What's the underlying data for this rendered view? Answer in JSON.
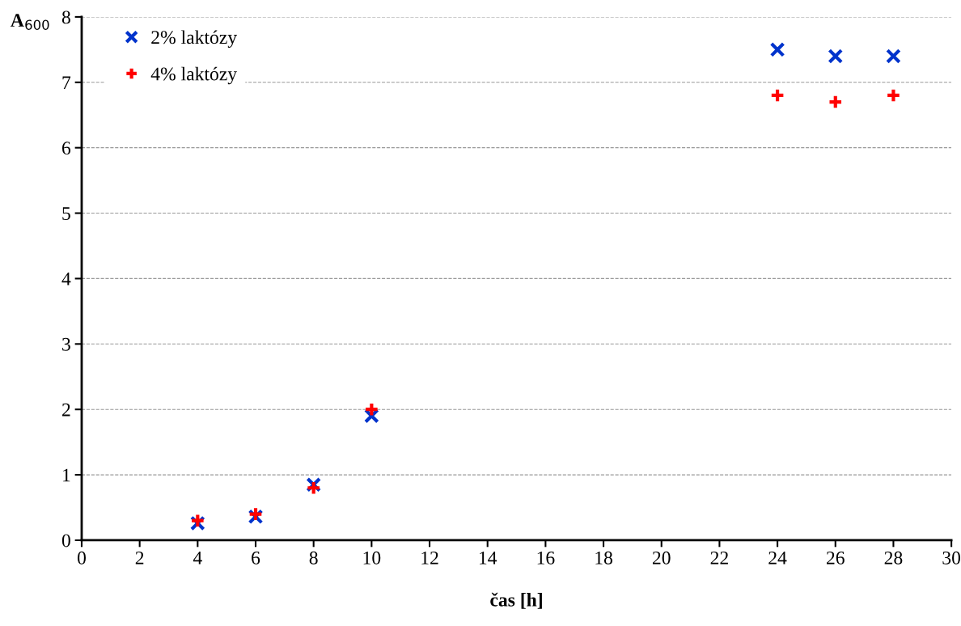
{
  "chart_data": {
    "type": "scatter",
    "xlabel": "čas [h]",
    "ylabel": "A$_{600}$",
    "x": [
      4,
      6,
      8,
      10,
      24,
      26,
      28
    ],
    "series": [
      {
        "name": "2% laktózy",
        "color": "#0033cc",
        "marker": "cross",
        "values": [
          0.26,
          0.36,
          0.85,
          1.9,
          7.5,
          7.4,
          7.4
        ]
      },
      {
        "name": "4% laktózy",
        "color": "#ff0000",
        "marker": "plus",
        "values": [
          0.3,
          0.4,
          0.8,
          2.0,
          6.8,
          6.7,
          6.8
        ]
      }
    ],
    "xlim": [
      0,
      30
    ],
    "xticks": [
      0,
      2,
      4,
      6,
      8,
      10,
      12,
      14,
      16,
      18,
      20,
      22,
      24,
      26,
      28,
      30
    ],
    "ylim": [
      0,
      8
    ],
    "yticks": [
      0,
      1,
      2,
      3,
      4,
      5,
      6,
      7,
      8
    ],
    "grid": "y",
    "legend": "top left"
  }
}
